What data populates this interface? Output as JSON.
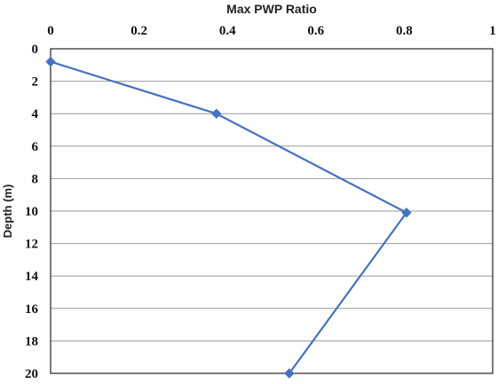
{
  "chart_data": {
    "type": "line",
    "title": "",
    "xlabel": "Max PWP Ratio",
    "ylabel": "Depth (m)",
    "xlim": [
      0,
      1
    ],
    "ylim": [
      0,
      20
    ],
    "y_inverted": true,
    "x_axis_position": "top",
    "xticks": [
      "0",
      "0.2",
      "0.4",
      "0.6",
      "0.8",
      "1"
    ],
    "yticks": [
      "0",
      "2",
      "4",
      "6",
      "8",
      "10",
      "12",
      "14",
      "16",
      "18",
      "20"
    ],
    "grid": "horizontal",
    "series": [
      {
        "color": "#4472C4",
        "marker": "diamond",
        "x": [
          0.0,
          0.375,
          0.805,
          0.54
        ],
        "y": [
          0.8,
          4.0,
          10.1,
          20.0
        ]
      }
    ]
  }
}
